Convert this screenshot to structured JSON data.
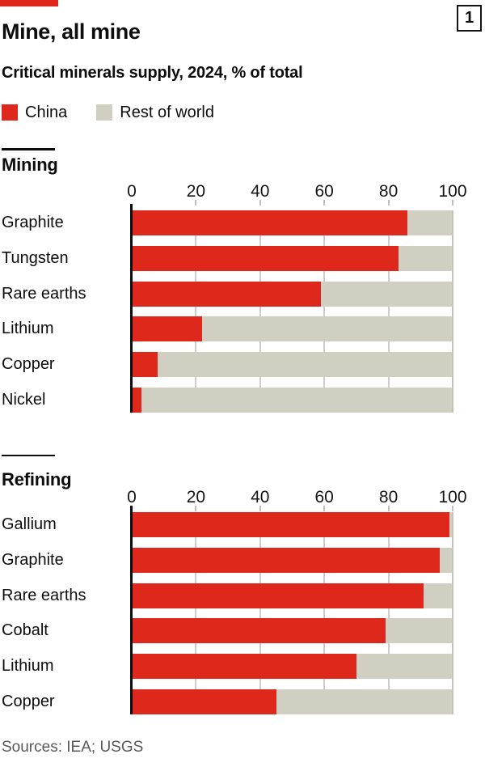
{
  "header": {
    "panel_number": "1",
    "title": "Mine, all mine",
    "subtitle": "Critical minerals supply, 2024, % of total"
  },
  "legend": [
    {
      "label": "China"
    },
    {
      "label": "Rest of world"
    }
  ],
  "colors": {
    "china_red": "#DE281B",
    "rest_of_world_beige": "#D1CFC2",
    "gridline": "#CCCCCC",
    "gridline_end": "#C5C4BA",
    "tick": "#BFBFBF",
    "axis_line": "#0D0D0D",
    "text": "#0D0D0D",
    "sources_grey": "#595959"
  },
  "chart_data": [
    {
      "type": "bar",
      "orientation": "horizontal",
      "stacked": true,
      "title": "Mining",
      "categories": [
        "Graphite",
        "Tungsten",
        "Rare earths",
        "Lithium",
        "Copper",
        "Nickel"
      ],
      "series": [
        {
          "name": "China",
          "values": [
            86,
            83,
            59,
            22,
            8,
            3
          ]
        },
        {
          "name": "Rest of world",
          "values": [
            14,
            17,
            41,
            78,
            92,
            97
          ]
        }
      ],
      "xlim": [
        0,
        100
      ],
      "xticks": [
        0,
        20,
        40,
        60,
        80,
        100
      ],
      "xlabel": "",
      "grid": true,
      "legend_position": "top"
    },
    {
      "type": "bar",
      "orientation": "horizontal",
      "stacked": true,
      "title": "Refining",
      "categories": [
        "Gallium",
        "Graphite",
        "Rare earths",
        "Cobalt",
        "Lithium",
        "Copper"
      ],
      "series": [
        {
          "name": "China",
          "values": [
            99,
            96,
            91,
            79,
            70,
            45
          ]
        },
        {
          "name": "Rest of world",
          "values": [
            1,
            4,
            9,
            21,
            30,
            55
          ]
        }
      ],
      "xlim": [
        0,
        100
      ],
      "xticks": [
        0,
        20,
        40,
        60,
        80,
        100
      ],
      "xlabel": "",
      "grid": true,
      "legend_position": "top"
    }
  ],
  "footer": {
    "sources": "Sources: IEA; USGS"
  }
}
